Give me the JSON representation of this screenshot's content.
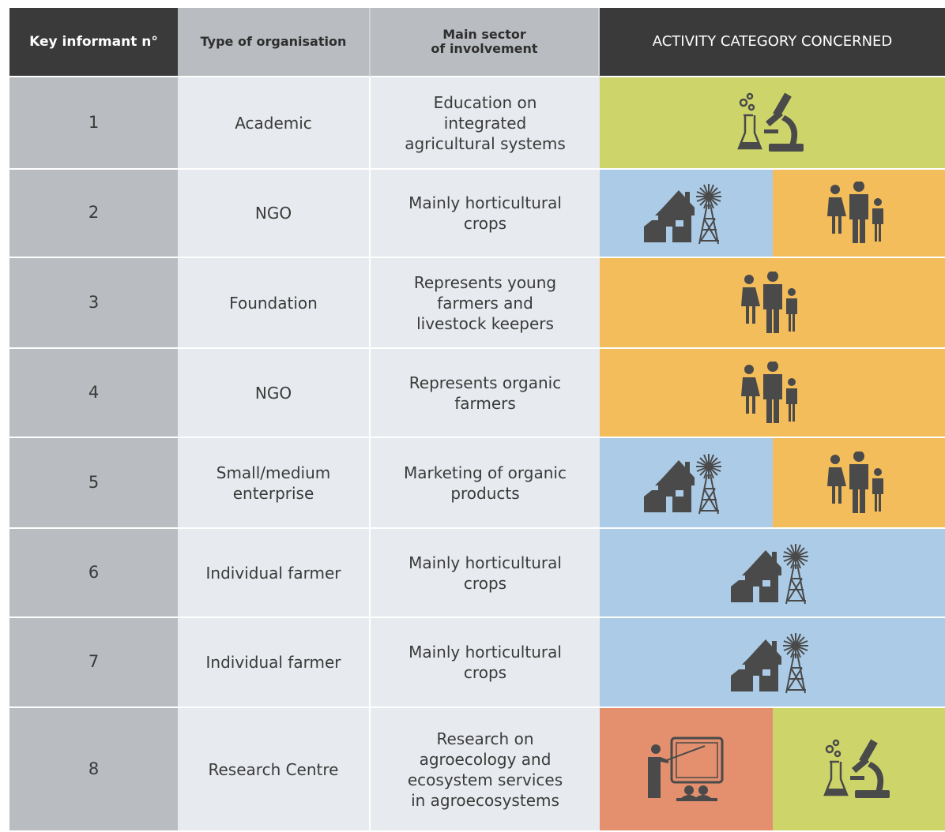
{
  "header": [
    "Key informant n°",
    "Type of organisation",
    "Main sector\nof  involvement",
    "ACTIVITY CATEGORY CONCERNED"
  ],
  "rows": [
    [
      "1",
      "Academic",
      "Education on integrated agricultural systems"
    ],
    [
      "2",
      "NGO",
      "Mainly horticultural crops"
    ],
    [
      "3",
      "Foundation",
      "Represents young farmers and livestock keepers"
    ],
    [
      "4",
      "NGO",
      "Represents organic farmers"
    ],
    [
      "5",
      "Small/medium enterprise",
      "Marketing of organic products"
    ],
    [
      "6",
      "Individual farmer",
      "Mainly horticultural crops"
    ],
    [
      "7",
      "Individual farmer",
      "Mainly horticultural crops"
    ],
    [
      "8",
      "Research Centre",
      "Research on agroecology and ecosystem services in agroecosystems"
    ]
  ]
}
